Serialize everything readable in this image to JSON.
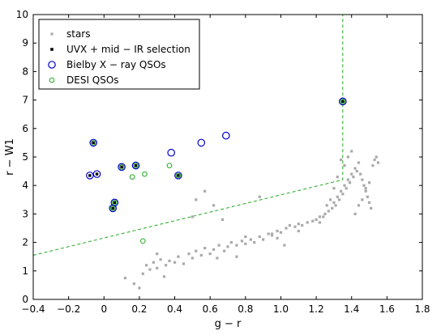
{
  "chart_data": {
    "type": "scatter",
    "xlabel": "g − r",
    "ylabel": "r − W1",
    "xlim": [
      -0.4,
      1.8
    ],
    "ylim": [
      0,
      10
    ],
    "xticks": [
      "−0.4",
      "−0.2",
      "0",
      "0.2",
      "0.4",
      "0.6",
      "0.8",
      "1.0",
      "1.2",
      "1.4",
      "1.6",
      "1.8"
    ],
    "yticks": [
      "0",
      "1",
      "2",
      "3",
      "4",
      "5",
      "6",
      "7",
      "8",
      "9",
      "10"
    ],
    "xtick_values": [
      -0.4,
      -0.2,
      0,
      0.2,
      0.4,
      0.6,
      0.8,
      1.0,
      1.2,
      1.4,
      1.6,
      1.8
    ],
    "ytick_values": [
      0,
      1,
      2,
      3,
      4,
      5,
      6,
      7,
      8,
      9,
      10
    ],
    "legend_position": "top-left",
    "colors": {
      "stars": "#aaaaaa",
      "uvx": "#000000",
      "bielby": "#0000cc",
      "desi": "#22aa22",
      "selection": "#22aa22"
    },
    "series": [
      {
        "name": "stars",
        "marker": "square-gray",
        "points": [
          [
            0.12,
            0.75
          ],
          [
            0.17,
            0.55
          ],
          [
            0.2,
            0.4
          ],
          [
            0.22,
            0.9
          ],
          [
            0.24,
            1.2
          ],
          [
            0.26,
            1.05
          ],
          [
            0.28,
            1.3
          ],
          [
            0.3,
            1.1
          ],
          [
            0.32,
            1.4
          ],
          [
            0.35,
            1.2
          ],
          [
            0.37,
            1.35
          ],
          [
            0.4,
            1.3
          ],
          [
            0.42,
            1.5
          ],
          [
            0.45,
            1.25
          ],
          [
            0.48,
            1.6
          ],
          [
            0.5,
            1.45
          ],
          [
            0.52,
            1.7
          ],
          [
            0.55,
            1.55
          ],
          [
            0.57,
            1.8
          ],
          [
            0.6,
            1.6
          ],
          [
            0.62,
            1.75
          ],
          [
            0.65,
            1.9
          ],
          [
            0.68,
            1.7
          ],
          [
            0.7,
            1.85
          ],
          [
            0.72,
            2.0
          ],
          [
            0.75,
            1.9
          ],
          [
            0.78,
            2.05
          ],
          [
            0.8,
            1.95
          ],
          [
            0.83,
            2.1
          ],
          [
            0.85,
            2.0
          ],
          [
            0.88,
            2.2
          ],
          [
            0.9,
            2.1
          ],
          [
            0.93,
            2.3
          ],
          [
            0.95,
            2.25
          ],
          [
            0.98,
            2.4
          ],
          [
            1.0,
            2.35
          ],
          [
            1.03,
            2.5
          ],
          [
            1.05,
            2.6
          ],
          [
            1.08,
            2.55
          ],
          [
            1.1,
            2.65
          ],
          [
            1.12,
            2.6
          ],
          [
            1.15,
            2.7
          ],
          [
            1.18,
            2.75
          ],
          [
            1.2,
            2.8
          ],
          [
            1.22,
            2.9
          ],
          [
            1.25,
            3.0
          ],
          [
            1.27,
            3.1
          ],
          [
            1.29,
            3.2
          ],
          [
            1.3,
            3.4
          ],
          [
            1.31,
            3.3
          ],
          [
            1.32,
            3.6
          ],
          [
            1.33,
            3.5
          ],
          [
            1.34,
            3.8
          ],
          [
            1.35,
            3.7
          ],
          [
            1.36,
            4.0
          ],
          [
            1.37,
            3.9
          ],
          [
            1.38,
            4.2
          ],
          [
            1.39,
            4.1
          ],
          [
            1.4,
            4.4
          ],
          [
            1.41,
            4.3
          ],
          [
            1.42,
            4.6
          ],
          [
            1.43,
            4.5
          ],
          [
            1.44,
            4.8
          ],
          [
            1.45,
            4.4
          ],
          [
            1.46,
            4.2
          ],
          [
            1.47,
            4.0
          ],
          [
            1.48,
            3.8
          ],
          [
            1.49,
            3.6
          ],
          [
            1.5,
            3.4
          ],
          [
            1.51,
            3.2
          ],
          [
            1.52,
            4.7
          ],
          [
            1.53,
            4.9
          ],
          [
            1.54,
            5.0
          ],
          [
            1.55,
            4.8
          ],
          [
            1.4,
            5.2
          ],
          [
            1.38,
            5.0
          ],
          [
            1.36,
            4.7
          ],
          [
            1.34,
            4.9
          ],
          [
            1.32,
            4.3
          ],
          [
            1.3,
            3.9
          ],
          [
            1.28,
            3.5
          ],
          [
            1.26,
            3.3
          ],
          [
            1.24,
            2.9
          ],
          [
            1.22,
            2.7
          ],
          [
            1.42,
            3.0
          ],
          [
            1.44,
            3.3
          ],
          [
            1.46,
            3.5
          ],
          [
            1.48,
            3.9
          ],
          [
            1.5,
            4.1
          ],
          [
            0.57,
            3.8
          ],
          [
            0.67,
            2.8
          ],
          [
            0.62,
            3.3
          ],
          [
            0.5,
            2.9
          ],
          [
            0.52,
            3.5
          ],
          [
            0.88,
            3.6
          ],
          [
            0.95,
            2.3
          ],
          [
            1.1,
            2.4
          ],
          [
            0.75,
            1.5
          ],
          [
            1.02,
            1.9
          ],
          [
            0.98,
            2.15
          ],
          [
            0.3,
            1.6
          ],
          [
            0.34,
            0.8
          ],
          [
            0.64,
            1.45
          ],
          [
            0.8,
            2.2
          ]
        ]
      },
      {
        "name": "UVX + mid − IR selection",
        "marker": "black-square",
        "points": [
          [
            -0.06,
            5.5
          ],
          [
            -0.08,
            4.35
          ],
          [
            -0.04,
            4.4
          ],
          [
            0.06,
            3.4
          ],
          [
            0.05,
            3.2
          ],
          [
            0.1,
            4.65
          ],
          [
            0.18,
            4.7
          ],
          [
            0.42,
            4.35
          ],
          [
            1.35,
            6.95
          ]
        ]
      },
      {
        "name": "Bielby X − ray QSOs",
        "marker": "blue-circle",
        "points": [
          [
            -0.06,
            5.5
          ],
          [
            -0.08,
            4.35
          ],
          [
            -0.04,
            4.4
          ],
          [
            0.06,
            3.4
          ],
          [
            0.05,
            3.2
          ],
          [
            0.1,
            4.65
          ],
          [
            0.18,
            4.7
          ],
          [
            0.42,
            4.35
          ],
          [
            0.38,
            5.15
          ],
          [
            0.55,
            5.5
          ],
          [
            0.69,
            5.75
          ],
          [
            1.35,
            6.95
          ]
        ]
      },
      {
        "name": "DESI QSOs",
        "marker": "green-circle",
        "points": [
          [
            -0.06,
            5.5
          ],
          [
            0.06,
            3.4
          ],
          [
            0.05,
            3.2
          ],
          [
            0.1,
            4.65
          ],
          [
            0.18,
            4.7
          ],
          [
            0.42,
            4.35
          ],
          [
            0.16,
            4.3
          ],
          [
            0.23,
            4.4
          ],
          [
            0.37,
            4.7
          ],
          [
            0.22,
            2.05
          ],
          [
            1.35,
            6.95
          ]
        ]
      }
    ],
    "selection_polygon": [
      [
        -0.4,
        10.5
      ],
      [
        -0.4,
        1.55
      ],
      [
        1.35,
        4.2
      ],
      [
        1.35,
        10.5
      ]
    ]
  }
}
